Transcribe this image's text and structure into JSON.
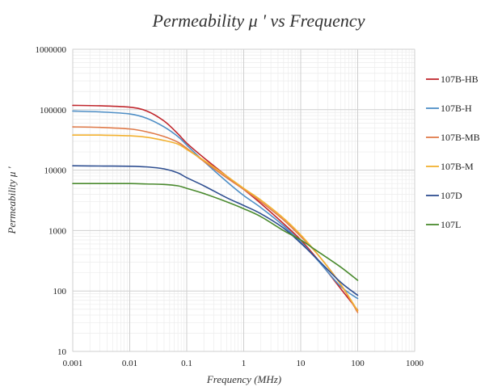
{
  "chart_data": {
    "type": "line",
    "title": "Permeability μ ' vs Frequency",
    "xlabel": "Frequency (MHz)",
    "ylabel": "Permeability μ '",
    "x_scale": "log",
    "y_scale": "log",
    "xlim": [
      0.001,
      1000
    ],
    "ylim": [
      10,
      1000000
    ],
    "x_ticks": [
      0.001,
      0.01,
      0.1,
      1,
      10,
      100,
      1000
    ],
    "x_tick_labels": [
      "0.001",
      "0.01",
      "0.1",
      "1",
      "10",
      "100",
      "1000"
    ],
    "y_ticks": [
      10,
      100,
      1000,
      10000,
      100000,
      1000000
    ],
    "y_tick_labels": [
      "10",
      "100",
      "1000",
      "10000",
      "100000",
      "1000000"
    ],
    "grid": true,
    "minor_grid": true,
    "legend_position": "right",
    "series": [
      {
        "name": "107B-HB",
        "color": "#c0272d",
        "points": [
          [
            0.001,
            118000
          ],
          [
            0.003,
            116000
          ],
          [
            0.01,
            110000
          ],
          [
            0.02,
            95000
          ],
          [
            0.04,
            65000
          ],
          [
            0.07,
            40000
          ],
          [
            0.1,
            28000
          ],
          [
            0.2,
            16000
          ],
          [
            0.5,
            8000
          ],
          [
            1,
            4800
          ],
          [
            2,
            2800
          ],
          [
            5,
            1300
          ],
          [
            10,
            700
          ],
          [
            20,
            330
          ],
          [
            50,
            110
          ],
          [
            100,
            48
          ]
        ]
      },
      {
        "name": "107B-H",
        "color": "#4f8fc6",
        "points": [
          [
            0.001,
            95000
          ],
          [
            0.003,
            92000
          ],
          [
            0.01,
            85000
          ],
          [
            0.02,
            72000
          ],
          [
            0.04,
            52000
          ],
          [
            0.07,
            36000
          ],
          [
            0.1,
            26000
          ],
          [
            0.2,
            14000
          ],
          [
            0.5,
            6500
          ],
          [
            1,
            3800
          ],
          [
            2,
            2400
          ],
          [
            5,
            1200
          ],
          [
            10,
            650
          ],
          [
            20,
            320
          ],
          [
            50,
            120
          ],
          [
            100,
            75
          ]
        ]
      },
      {
        "name": "107B-MB",
        "color": "#e07b4a",
        "points": [
          [
            0.001,
            52000
          ],
          [
            0.003,
            51000
          ],
          [
            0.01,
            48000
          ],
          [
            0.02,
            43000
          ],
          [
            0.04,
            36000
          ],
          [
            0.07,
            29000
          ],
          [
            0.1,
            23000
          ],
          [
            0.2,
            14000
          ],
          [
            0.5,
            7500
          ],
          [
            1,
            4800
          ],
          [
            2,
            3000
          ],
          [
            5,
            1500
          ],
          [
            10,
            800
          ],
          [
            20,
            400
          ],
          [
            50,
            130
          ],
          [
            100,
            44
          ]
        ]
      },
      {
        "name": "107B-M",
        "color": "#f2b130",
        "points": [
          [
            0.001,
            38000
          ],
          [
            0.003,
            38000
          ],
          [
            0.01,
            37000
          ],
          [
            0.02,
            35000
          ],
          [
            0.04,
            31000
          ],
          [
            0.07,
            27000
          ],
          [
            0.1,
            22000
          ],
          [
            0.2,
            14500
          ],
          [
            0.5,
            8000
          ],
          [
            1,
            5000
          ],
          [
            2,
            3200
          ],
          [
            5,
            1600
          ],
          [
            10,
            850
          ],
          [
            20,
            400
          ],
          [
            50,
            130
          ],
          [
            100,
            47
          ]
        ]
      },
      {
        "name": "107D",
        "color": "#2f4f91",
        "points": [
          [
            0.001,
            11800
          ],
          [
            0.003,
            11700
          ],
          [
            0.01,
            11600
          ],
          [
            0.02,
            11300
          ],
          [
            0.04,
            10500
          ],
          [
            0.07,
            9000
          ],
          [
            0.1,
            7500
          ],
          [
            0.2,
            5500
          ],
          [
            0.5,
            3500
          ],
          [
            1,
            2600
          ],
          [
            2,
            1900
          ],
          [
            5,
            1100
          ],
          [
            10,
            620
          ],
          [
            20,
            330
          ],
          [
            50,
            140
          ],
          [
            100,
            85
          ]
        ]
      },
      {
        "name": "107L",
        "color": "#4a8a2e",
        "points": [
          [
            0.001,
            6000
          ],
          [
            0.003,
            6000
          ],
          [
            0.01,
            6000
          ],
          [
            0.02,
            5900
          ],
          [
            0.04,
            5800
          ],
          [
            0.07,
            5500
          ],
          [
            0.1,
            5000
          ],
          [
            0.2,
            4100
          ],
          [
            0.5,
            3000
          ],
          [
            1,
            2300
          ],
          [
            2,
            1700
          ],
          [
            5,
            1000
          ],
          [
            10,
            700
          ],
          [
            20,
            450
          ],
          [
            50,
            250
          ],
          [
            100,
            150
          ]
        ]
      }
    ]
  }
}
